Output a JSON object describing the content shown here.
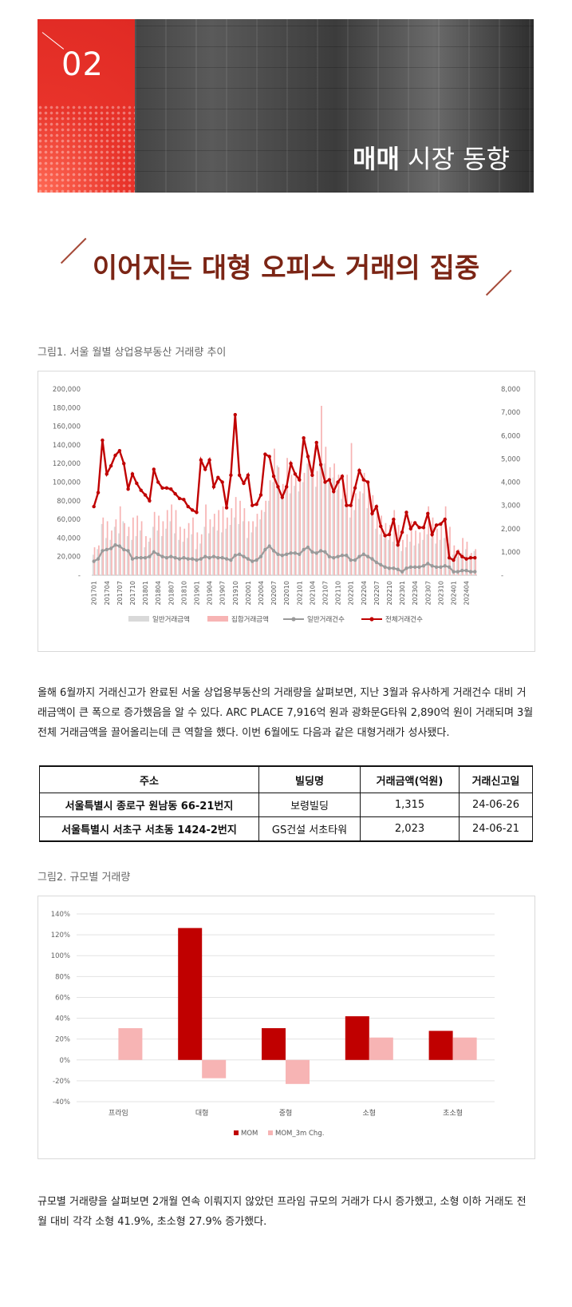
{
  "banner": {
    "number": "02",
    "title_bold": "매매",
    "title_rest": " 시장 동향"
  },
  "headline": "이어지는 대형 오피스 거래의 집중",
  "figure1": {
    "label": "그림1. 서울 월별 상업용부동산 거래량 추이",
    "chart_data": {
      "type": "bar",
      "categories": [
        "201701",
        "201702",
        "201703",
        "201704",
        "201705",
        "201706",
        "201707",
        "201708",
        "201709",
        "201710",
        "201711",
        "201712",
        "201801",
        "201802",
        "201803",
        "201804",
        "201805",
        "201806",
        "201807",
        "201808",
        "201809",
        "201810",
        "201811",
        "201812",
        "201901",
        "201902",
        "201903",
        "201904",
        "201905",
        "201906",
        "201907",
        "201908",
        "201909",
        "201910",
        "201911",
        "201912",
        "202001",
        "202002",
        "202003",
        "202004",
        "202005",
        "202006",
        "202007",
        "202008",
        "202009",
        "202010",
        "202011",
        "202012",
        "202101",
        "202102",
        "202103",
        "202104",
        "202105",
        "202106",
        "202107",
        "202108",
        "202109",
        "202110",
        "202111",
        "202112",
        "202201",
        "202202",
        "202203",
        "202204",
        "202205",
        "202206",
        "202207",
        "202208",
        "202209",
        "202210",
        "202211",
        "202212",
        "202301",
        "202302",
        "202303",
        "202304",
        "202305",
        "202306",
        "202307",
        "202308",
        "202309",
        "202310",
        "202311",
        "202312",
        "202401",
        "202402",
        "202403",
        "202404",
        "202405",
        "202406"
      ],
      "tick_labels": [
        "201701",
        "201704",
        "201707",
        "201710",
        "201801",
        "201804",
        "201807",
        "201810",
        "201901",
        "201904",
        "201907",
        "201910",
        "202001",
        "202004",
        "202007",
        "202010",
        "202101",
        "202104",
        "202107",
        "202110",
        "202201",
        "202204",
        "202207",
        "202210",
        "202301",
        "202304",
        "202307",
        "202310",
        "202401",
        "202404"
      ],
      "y_left_ticks": [
        "-",
        "20,000",
        "40,000",
        "60,000",
        "80,000",
        "100,000",
        "120,000",
        "140,000",
        "160,000",
        "180,000",
        "200,000"
      ],
      "y_right_ticks": [
        "-",
        "1,000",
        "2,000",
        "3,000",
        "4,000",
        "5,000",
        "6,000",
        "7,000",
        "8,000"
      ],
      "ylim_left": [
        0,
        200000
      ],
      "ylim_right": [
        0,
        8000
      ],
      "series": [
        {
          "name": "일반거래금액",
          "color": "#d9d9d9",
          "axis": "left",
          "values": [
            22000,
            28000,
            55000,
            40000,
            38000,
            52000,
            45000,
            58000,
            42000,
            38000,
            42000,
            48000,
            30000,
            36000,
            52000,
            48000,
            42000,
            50000,
            58000,
            45000,
            38000,
            36000,
            40000,
            44000,
            28000,
            34000,
            52000,
            45000,
            52000,
            48000,
            46000,
            50000,
            54000,
            62000,
            55000,
            58000,
            40000,
            46000,
            52000,
            60000,
            68000,
            80000,
            100000,
            118000,
            86000,
            92000,
            88000,
            96000,
            90000,
            100000,
            120000,
            110000,
            95000,
            125000,
            120000,
            100000,
            105000,
            92000,
            82000,
            86000,
            62000,
            70000,
            82000,
            88000,
            72000,
            64000,
            50000,
            44000,
            40000,
            38000,
            36000,
            32000,
            26000,
            30000,
            36000,
            32000,
            34000,
            38000,
            44000,
            40000,
            34000,
            38000,
            40000,
            34000,
            22000,
            20000,
            24000,
            28000,
            22000,
            26000
          ]
        },
        {
          "name": "집합거래금액",
          "color": "#f7b4b4",
          "axis": "left",
          "values": [
            30000,
            32000,
            62000,
            58000,
            48000,
            60000,
            74000,
            56000,
            52000,
            62000,
            64000,
            58000,
            42000,
            40000,
            68000,
            64000,
            58000,
            70000,
            76000,
            70000,
            52000,
            50000,
            56000,
            62000,
            46000,
            44000,
            76000,
            60000,
            66000,
            70000,
            74000,
            62000,
            72000,
            84000,
            80000,
            72000,
            58000,
            58000,
            66000,
            70000,
            80000,
            102000,
            136000,
            116000,
            98000,
            126000,
            108000,
            110000,
            108000,
            110000,
            130000,
            108000,
            112000,
            182000,
            138000,
            116000,
            120000,
            108000,
            98000,
            108000,
            142000,
            88000,
            90000,
            110000,
            100000,
            86000,
            70000,
            64000,
            56000,
            54000,
            70000,
            54000,
            38000,
            44000,
            58000,
            48000,
            46000,
            52000,
            74000,
            62000,
            50000,
            56000,
            74000,
            52000,
            32000,
            28000,
            40000,
            36000,
            24000,
            28000
          ]
        },
        {
          "name": "일반거래건수",
          "color": "#9a9a9a",
          "axis": "right",
          "values": [
            600,
            700,
            1050,
            1100,
            1150,
            1300,
            1250,
            1100,
            1050,
            700,
            750,
            750,
            750,
            800,
            1000,
            900,
            800,
            750,
            800,
            750,
            700,
            750,
            700,
            700,
            650,
            700,
            800,
            750,
            800,
            750,
            750,
            700,
            650,
            850,
            900,
            800,
            700,
            600,
            650,
            800,
            1100,
            1250,
            1050,
            900,
            850,
            900,
            950,
            950,
            900,
            1100,
            1200,
            1000,
            950,
            1050,
            1000,
            800,
            750,
            800,
            850,
            850,
            650,
            650,
            800,
            900,
            800,
            700,
            550,
            450,
            350,
            300,
            300,
            250,
            150,
            300,
            350,
            350,
            350,
            400,
            500,
            400,
            350,
            350,
            400,
            350,
            150,
            150,
            200,
            200,
            150,
            150
          ]
        },
        {
          "name": "전체거래건수",
          "color": "#c00000",
          "axis": "right",
          "values": [
            2950,
            3550,
            5800,
            4350,
            4700,
            5150,
            5350,
            4800,
            3700,
            4350,
            3950,
            3650,
            3450,
            3200,
            4550,
            4000,
            3750,
            3750,
            3700,
            3500,
            3300,
            3250,
            2950,
            2800,
            2700,
            4950,
            4550,
            4950,
            3800,
            4200,
            4000,
            2900,
            4300,
            6900,
            4300,
            3950,
            4300,
            3000,
            3050,
            3450,
            5200,
            5100,
            4250,
            3800,
            3350,
            3800,
            4800,
            4350,
            4100,
            5900,
            5100,
            4300,
            5700,
            4750,
            4000,
            4100,
            3600,
            4000,
            4250,
            3000,
            3000,
            3750,
            4500,
            4100,
            4000,
            2650,
            2950,
            2100,
            1700,
            1750,
            2400,
            1300,
            1850,
            2700,
            2000,
            2250,
            2050,
            2050,
            2650,
            1750,
            2150,
            2200,
            2400,
            750,
            650,
            1000,
            800,
            700,
            750,
            750
          ]
        }
      ]
    }
  },
  "paragraph1": "올해 6월까지 거래신고가 완료된 서울 상업용부동산의 거래량을 살펴보면, 지난 3월과 유사하게 거래건수 대비 거래금액이 큰 폭으로 증가했음을 알 수 있다. ARC PLACE 7,916억 원과 광화문G타워 2,890억 원이 거래되며 3월 전체 거래금액을 끌어올리는데 큰 역할을 했다. 이번 6월에도 다음과 같은 대형거래가 성사됐다.",
  "deals_table": {
    "headers": [
      "주소",
      "빌딩명",
      "거래금액(억원)",
      "거래신고일"
    ],
    "rows": [
      [
        "서울특별시 종로구 원남동 66-21번지",
        "보령빌딩",
        "1,315",
        "24-06-26"
      ],
      [
        "서울특별시 서초구 서초동 1424-2번지",
        "GS건설 서초타워",
        "2,023",
        "24-06-21"
      ]
    ]
  },
  "figure2": {
    "label": "그림2. 규모별 거래량",
    "chart_data": {
      "type": "bar",
      "categories": [
        "프라임",
        "대형",
        "중형",
        "소형",
        "초소형"
      ],
      "y_ticks": [
        "140%",
        "120%",
        "100%",
        "80%",
        "60%",
        "40%",
        "20%",
        "0%",
        "-20%",
        "-40%"
      ],
      "ylim": [
        -40,
        140
      ],
      "series": [
        {
          "name": "MOM",
          "color": "#c00000",
          "values": [
            null,
            126.5,
            30.5,
            41.9,
            27.9
          ]
        },
        {
          "name": "MOM_3m Chg.",
          "color": "#f7b4b4",
          "values": [
            30.5,
            -17.5,
            -23,
            21.5,
            21.5
          ]
        }
      ]
    }
  },
  "paragraph2": "규모별 거래량을 살펴보면 2개월 연속 이뤄지지 않았던 프라임 규모의 거래가 다시 증가했고, 소형 이하 거래도 전월 대비 각각 소형 41.9%, 초소형 27.9% 증가했다."
}
